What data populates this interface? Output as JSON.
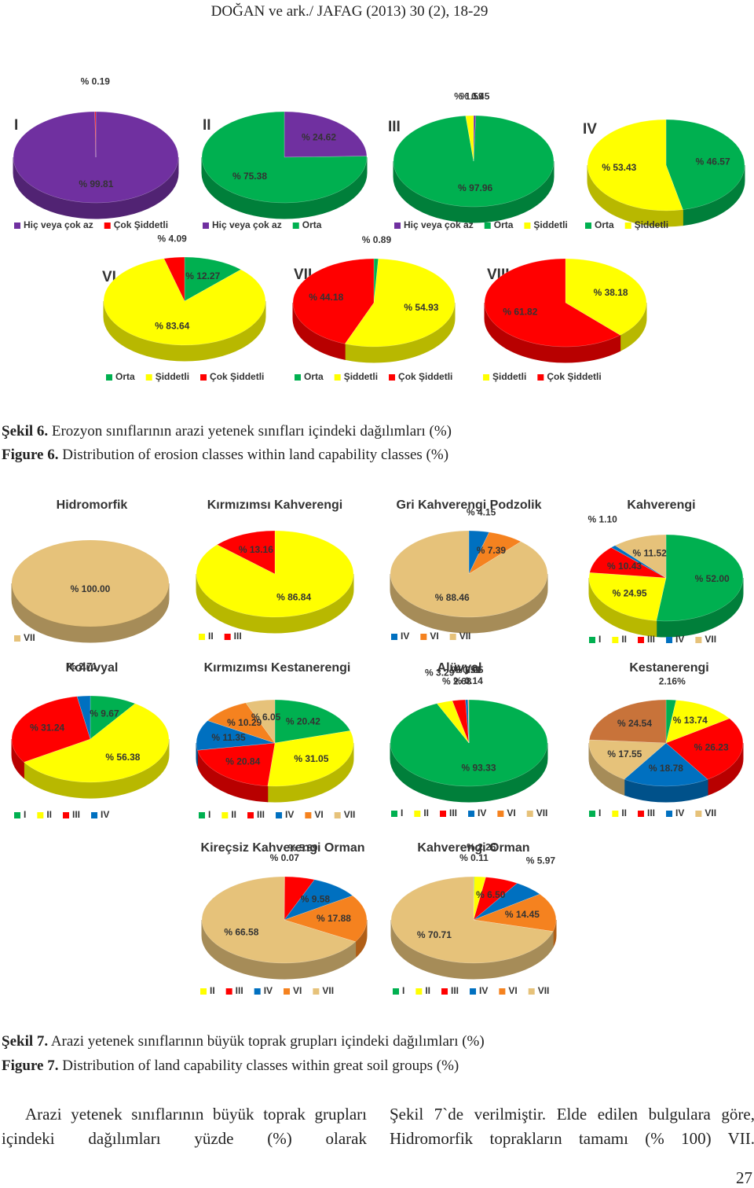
{
  "header": "DOĞAN ve ark./ JAFAG (2013) 30 (2), 18-29",
  "figure6": {
    "label_tr": "Şekil 6.",
    "text_tr": "Erozyon sınıflarının arazi yetenek sınıfları içindeki dağılımları (%)",
    "label_en": "Figure 6.",
    "text_en": "Distribution of erosion classes within land capability classes (%)"
  },
  "figure7": {
    "label_tr": "Şekil 7.",
    "text_tr": "Arazi yetenek sınıflarının büyük toprak grupları içindeki dağılımları (%)",
    "label_en": "Figure 7.",
    "text_en": "Distribution of land capability classes within great soil groups (%)"
  },
  "body": {
    "left": "Arazi yetenek sınıflarının büyük toprak grupları içindeki dağılımları yüzde (%) olarak",
    "right": "Şekil 7`de verilmiştir. Elde edilen bulgulara göre, Hidromorfik toprakların tamamı (% 100) VII."
  },
  "page_number": "27",
  "chart_data": [
    {
      "type": "pie",
      "title": "I",
      "categories": [
        "Hiç veya çok az",
        "Çok Şiddetli"
      ],
      "values": [
        99.81,
        0.19
      ],
      "value_labels": [
        "% 99.81",
        "% 0.19"
      ],
      "colors": [
        "#7030a0",
        "#ff0000"
      ]
    },
    {
      "type": "pie",
      "title": "II",
      "categories": [
        "Hiç veya çok az",
        "Orta"
      ],
      "values": [
        24.62,
        75.38
      ],
      "value_labels": [
        "% 24.62",
        "% 75.38"
      ],
      "colors": [
        "#7030a0",
        "#00b050"
      ]
    },
    {
      "type": "pie",
      "title": "III",
      "categories": [
        "Hiç veya çok az",
        "Orta",
        "Şiddetli"
      ],
      "values": [
        0.45,
        97.96,
        1.59
      ],
      "value_labels": [
        "% 0.45",
        "% 97.96",
        "% 1.59"
      ],
      "colors": [
        "#7030a0",
        "#00b050",
        "#ffff00"
      ]
    },
    {
      "type": "pie",
      "title": "IV",
      "categories": [
        "Orta",
        "Şiddetli"
      ],
      "values": [
        46.57,
        53.43
      ],
      "value_labels": [
        "% 46.57",
        "% 53.43"
      ],
      "colors": [
        "#00b050",
        "#ffff00"
      ]
    },
    {
      "type": "pie",
      "title": "VI",
      "categories": [
        "Orta",
        "Şiddetli",
        "Çok Şiddetli"
      ],
      "values": [
        12.27,
        83.64,
        4.09
      ],
      "value_labels": [
        "% 12.27",
        "% 83.64",
        "% 4.09"
      ],
      "colors": [
        "#00b050",
        "#ffff00",
        "#ff0000"
      ]
    },
    {
      "type": "pie",
      "title": "VII",
      "categories": [
        "Orta",
        "Şiddetli",
        "Çok Şiddetli"
      ],
      "values": [
        0.89,
        54.93,
        44.18
      ],
      "value_labels": [
        "% 0.89",
        "% 54.93",
        "% 44.18"
      ],
      "colors": [
        "#00b050",
        "#ffff00",
        "#ff0000"
      ]
    },
    {
      "type": "pie",
      "title": "VIII",
      "categories": [
        "Şiddetli",
        "Çok Şiddetli"
      ],
      "values": [
        38.18,
        61.82
      ],
      "value_labels": [
        "% 38.18",
        "% 61.82"
      ],
      "colors": [
        "#ffff00",
        "#ff0000"
      ]
    },
    {
      "type": "pie",
      "title": "Hidromorfik",
      "categories": [
        "VII"
      ],
      "values": [
        100.0
      ],
      "value_labels": [
        "% 100.00"
      ],
      "colors": [
        "#e6c27a"
      ]
    },
    {
      "type": "pie",
      "title": "Kırmızımsı Kahverengi",
      "categories": [
        "II",
        "III"
      ],
      "values": [
        86.84,
        13.16
      ],
      "value_labels": [
        "% 86.84",
        "% 13.16"
      ],
      "colors": [
        "#ffff00",
        "#ff0000"
      ]
    },
    {
      "type": "pie",
      "title": "Gri Kahverengi Podzolik",
      "categories": [
        "IV",
        "VI",
        "VII"
      ],
      "values": [
        4.15,
        7.39,
        88.46
      ],
      "value_labels": [
        "% 4.15",
        "% 7.39",
        "% 88.46"
      ],
      "colors": [
        "#0070c0",
        "#f5821f",
        "#e6c27a"
      ]
    },
    {
      "type": "pie",
      "title": "Kahverengi",
      "categories": [
        "I",
        "II",
        "III",
        "IV",
        "VII"
      ],
      "values": [
        52.0,
        24.95,
        10.43,
        1.1,
        11.52
      ],
      "value_labels": [
        "% 52.00",
        "% 24.95",
        "% 10.43",
        "% 1.10",
        "% 11.52"
      ],
      "colors": [
        "#00b050",
        "#ffff00",
        "#ff0000",
        "#0070c0",
        "#e6c27a"
      ]
    },
    {
      "type": "pie",
      "title": "Kolüvyal",
      "categories": [
        "I",
        "II",
        "III",
        "IV"
      ],
      "values": [
        9.67,
        56.38,
        31.24,
        2.71
      ],
      "value_labels": [
        "% 9.67",
        "% 56.38",
        "% 31.24",
        "% 2.71"
      ],
      "colors": [
        "#00b050",
        "#ffff00",
        "#ff0000",
        "#0070c0"
      ]
    },
    {
      "type": "pie",
      "title": "Kırmızımsı Kestanerengi",
      "categories": [
        "I",
        "II",
        "III",
        "IV",
        "VI",
        "VII"
      ],
      "values": [
        20.42,
        31.05,
        20.84,
        11.35,
        10.29,
        6.05
      ],
      "value_labels": [
        "% 20.42",
        "% 31.05",
        "% 20.84",
        "% 11.35",
        "% 10.29",
        "% 6.05"
      ],
      "colors": [
        "#00b050",
        "#ffff00",
        "#ff0000",
        "#0070c0",
        "#f5821f",
        "#e6c27a"
      ]
    },
    {
      "type": "pie",
      "title": "Alüvyal",
      "categories": [
        "I",
        "II",
        "III",
        "IV",
        "VI",
        "VII"
      ],
      "values": [
        93.33,
        3.29,
        2.68,
        0.51,
        0.14,
        0.05
      ],
      "value_labels": [
        "% 93.33",
        "% 3.29",
        "% 2.68",
        "% 0.51",
        "% 0.14",
        "% 0.05"
      ],
      "colors": [
        "#00b050",
        "#ffff00",
        "#ff0000",
        "#0070c0",
        "#f5821f",
        "#e6c27a"
      ]
    },
    {
      "type": "pie",
      "title": "Kestanerengi",
      "categories": [
        "I",
        "II",
        "III",
        "IV",
        "VII",
        null
      ],
      "values": [
        2.16,
        13.74,
        26.23,
        18.78,
        17.55,
        24.54
      ],
      "value_labels": [
        "2.16%",
        "% 13.74",
        "% 26.23",
        "% 18.78",
        "% 17.55",
        "% 24.54"
      ],
      "colors": [
        "#00b050",
        "#ffff00",
        "#ff0000",
        "#0070c0",
        "#e6c27a",
        "#c8733a"
      ]
    },
    {
      "type": "pie",
      "title": "Kireçsiz Kahverengi Orman",
      "categories": [
        "II",
        "III",
        "IV",
        "VI",
        "VII"
      ],
      "values": [
        0.07,
        5.89,
        9.58,
        17.88,
        66.58
      ],
      "value_labels": [
        "% 0.07",
        "% 5.89",
        "% 9.58",
        "% 17.88",
        "% 66.58"
      ],
      "colors": [
        "#ffff00",
        "#ff0000",
        "#0070c0",
        "#f5821f",
        "#e6c27a"
      ]
    },
    {
      "type": "pie",
      "title": "Kahverengi Orman",
      "categories": [
        "I",
        "II",
        "III",
        "IV",
        "VI",
        "VII"
      ],
      "values": [
        0.11,
        2.26,
        6.5,
        5.97,
        14.45,
        70.71
      ],
      "value_labels": [
        "% 0.11",
        "% 2.26",
        "% 6.50",
        "% 5.97",
        "% 14.45",
        "% 70.71"
      ],
      "colors": [
        "#00b050",
        "#ffff00",
        "#ff0000",
        "#0070c0",
        "#f5821f",
        "#e6c27a"
      ]
    }
  ]
}
